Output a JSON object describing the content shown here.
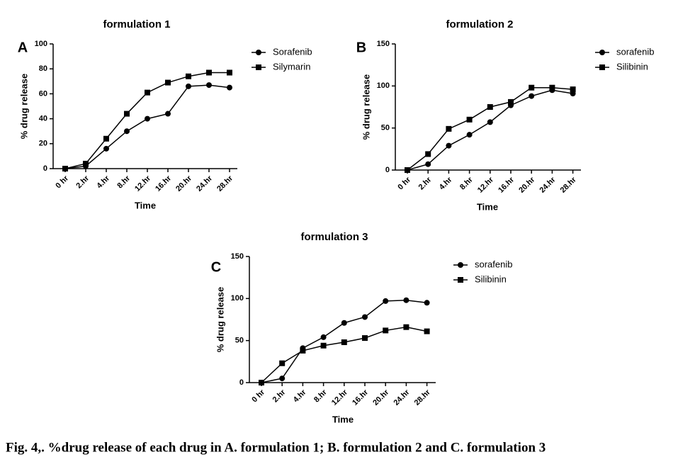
{
  "chart_data": [
    {
      "type": "line",
      "panel": "A",
      "title": "formulation 1",
      "x_label": "Time",
      "y_label": "% drug release",
      "categories": [
        "0 hr",
        "2.hr",
        "4.hr",
        "8.hr",
        "12.hr",
        "16.hr",
        "20.hr",
        "24.hr",
        "28.hr"
      ],
      "series": [
        {
          "name": "Sorafenib",
          "color": "#000000",
          "marker": "circle",
          "values": [
            0,
            2,
            16,
            30,
            40,
            44,
            66,
            67,
            65
          ]
        },
        {
          "name": "Silymarin",
          "color": "#000000",
          "marker": "square",
          "values": [
            0,
            4,
            24,
            44,
            61,
            69,
            74,
            77,
            77
          ]
        }
      ],
      "ylim": [
        0,
        100
      ],
      "yticks": [
        0,
        20,
        40,
        60,
        80,
        100
      ]
    },
    {
      "type": "line",
      "panel": "B",
      "title": "formulation 2",
      "x_label": "Time",
      "y_label": "% drug release",
      "categories": [
        "0 hr",
        "2.hr",
        "4.hr",
        "8.hr",
        "12.hr",
        "16.hr",
        "20.hr",
        "24.hr",
        "28.hr"
      ],
      "series": [
        {
          "name": "sorafenib",
          "color": "#000000",
          "marker": "circle",
          "values": [
            0,
            7,
            29,
            42,
            57,
            77,
            88,
            95,
            91
          ]
        },
        {
          "name": "Silibinin",
          "color": "#000000",
          "marker": "square",
          "values": [
            0,
            19,
            49,
            60,
            75,
            81,
            98,
            98,
            96
          ]
        }
      ],
      "ylim": [
        0,
        150
      ],
      "yticks": [
        0,
        50,
        100,
        150
      ]
    },
    {
      "type": "line",
      "panel": "C",
      "title": "formulation 3",
      "x_label": "Time",
      "y_label": "% drug release",
      "categories": [
        "0 hr",
        "2.hr",
        "4.hr",
        "8.hr",
        "12.hr",
        "16.hr",
        "20.hr",
        "24.hr",
        "28.hr"
      ],
      "series": [
        {
          "name": "sorafenib",
          "color": "#000000",
          "marker": "circle",
          "values": [
            0,
            5,
            41,
            54,
            71,
            78,
            97,
            98,
            95
          ]
        },
        {
          "name": "Silibinin",
          "color": "#000000",
          "marker": "square",
          "values": [
            0,
            23,
            38,
            44,
            48,
            53,
            62,
            66,
            61
          ]
        }
      ],
      "ylim": [
        0,
        150
      ],
      "yticks": [
        0,
        50,
        100,
        150
      ]
    }
  ],
  "caption": "Fig. 4,. %drug release of each drug in  A. formulation 1; B. formulation 2 and C. formulation 3"
}
